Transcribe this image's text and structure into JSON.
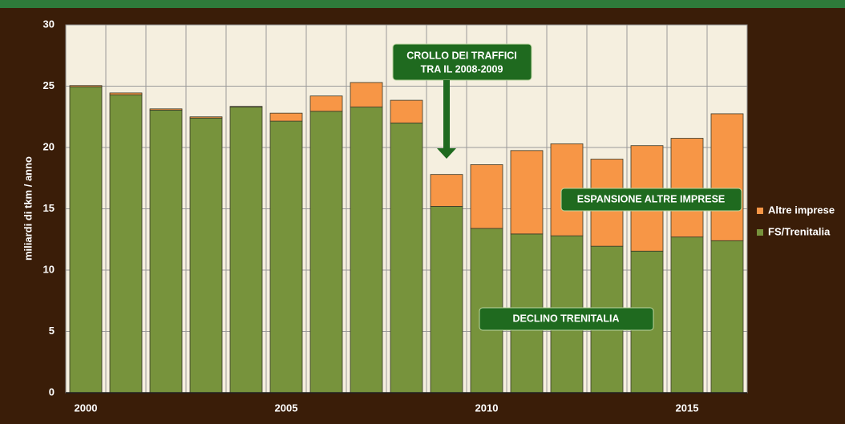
{
  "chart_data": {
    "type": "bar",
    "stacked": true,
    "y_label": "miliardi di tkm / anno",
    "categories": [
      "2000",
      null,
      null,
      null,
      null,
      "2005",
      null,
      null,
      null,
      null,
      "2010",
      null,
      null,
      null,
      null,
      "2015",
      null
    ],
    "series": [
      {
        "name": "FS/Trenitalia",
        "color": "#77933c",
        "values": [
          24.95,
          24.3,
          23.05,
          22.4,
          23.3,
          22.15,
          22.95,
          23.3,
          22.0,
          15.2,
          13.4,
          12.95,
          12.8,
          11.95,
          11.55,
          12.7,
          12.4
        ]
      },
      {
        "name": "Altre imprese",
        "color": "#f79646",
        "values": [
          0.1,
          0.15,
          0.1,
          0.1,
          0.05,
          0.65,
          1.25,
          2.0,
          1.85,
          2.6,
          5.2,
          6.8,
          7.5,
          7.1,
          8.6,
          8.05,
          10.35
        ]
      }
    ],
    "ylim": [
      0,
      30
    ],
    "yticks": [
      0,
      5,
      10,
      15,
      20,
      25,
      30
    ],
    "grid": true,
    "annotations": [
      "CROLLO DEI TRAFFICI",
      "TRA IL 2008-2009",
      "ESPANSIONE ALTRE IMPRESE",
      "DECLINO TRENITALIA"
    ]
  }
}
